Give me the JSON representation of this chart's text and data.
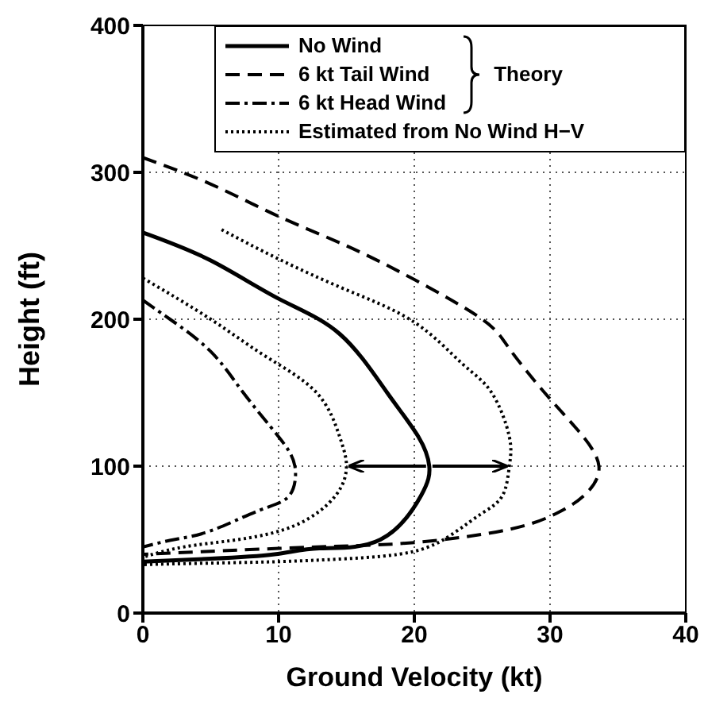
{
  "chart_data": {
    "type": "line",
    "xlabel": "Ground Velocity (kt)",
    "ylabel": "Height (ft)",
    "xlim": [
      0,
      40
    ],
    "xticks": [
      0,
      10,
      20,
      30,
      40
    ],
    "ylim": [
      0,
      400
    ],
    "yticks": [
      0,
      100,
      200,
      300,
      400
    ],
    "grid": true,
    "legend": "top right",
    "legend_title": "Theory",
    "marker": "none",
    "series": [
      {
        "name": "No Wind",
        "color": "#000000",
        "line_style": "solid",
        "x": [
          0,
          5,
          10,
          14.5,
          18,
          20.3,
          21.1,
          20.5,
          17.5,
          13,
          9.7,
          5,
          0
        ],
        "values": [
          259,
          240,
          214,
          190,
          150,
          120,
          100,
          80,
          50,
          44,
          40,
          37,
          35
        ]
      },
      {
        "name": "6 kt Tail Wind",
        "color": "#000000",
        "line_style": "dashed",
        "x": [
          0,
          5,
          10,
          15,
          20,
          25,
          27,
          29.6,
          32,
          33.6,
          32.5,
          30.5,
          27,
          20,
          12.8,
          5,
          0
        ],
        "values": [
          310,
          292,
          270,
          250,
          227,
          200,
          180,
          150,
          125,
          100,
          80,
          68,
          57,
          48,
          45,
          42,
          40
        ]
      },
      {
        "name": "6 kt Head Wind",
        "color": "#000000",
        "line_style": "dashdot",
        "x": [
          0,
          2,
          5,
          7.4,
          10,
          11.2,
          10.8,
          8.6,
          5,
          2.3,
          0
        ],
        "values": [
          213,
          200,
          178,
          150,
          120,
          100,
          80,
          70,
          56,
          50,
          45
        ]
      },
      {
        "name": "Estimated from No Wind H−V",
        "color": "#000000",
        "line_style": "dotted",
        "x": [
          0,
          5,
          9,
          12.8,
          14.5,
          15,
          14.2,
          11.3,
          7,
          3,
          0
        ],
        "values": [
          228,
          200,
          175,
          150,
          120,
          100,
          80,
          60,
          50,
          45,
          38
        ]
      },
      {
        "color": "#000000",
        "line_style": "dotted",
        "x": [
          5.8,
          10,
          15,
          20,
          23.5,
          25.7,
          27,
          27,
          26.5,
          25,
          23,
          20,
          15,
          10,
          5,
          0
        ],
        "values": [
          261,
          241,
          220,
          198,
          170,
          150,
          120,
          100,
          80,
          68,
          55,
          42,
          37,
          35,
          34,
          33
        ]
      }
    ]
  }
}
